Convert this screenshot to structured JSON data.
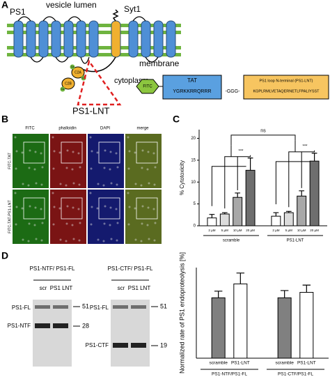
{
  "panel_labels": [
    "A",
    "B",
    "C",
    "D"
  ],
  "diagram": {
    "ps1": "PS1",
    "lumen": "vesicle lumen",
    "syt1": "Syt1",
    "membrane": "membrane",
    "cytoplasm": "cytoplasm",
    "lnt": "PS1-LNT",
    "c2a": "C2A",
    "c2b": "C2B",
    "ca": "Ca"
  },
  "construct": {
    "fitc": "FITC",
    "tat": "TAT",
    "tat_seq": "YGRKKRRQRRR",
    "linker": "-GGG-",
    "lnt_title": "PS1 loop N-terminal (PS1-LNT)",
    "lnt_seq": "KGPLRMLVETAQERNETLFPALIYSST"
  },
  "microscopy": {
    "columns": [
      "FITC",
      "phalloidin",
      "DAPI",
      "merge"
    ],
    "rows": [
      "FITC-TAT",
      "FITC-TAT-PS1-LNT"
    ]
  },
  "blots": [
    {
      "title": "PS1-NTF/ PS1-FL",
      "lanes": [
        "scr",
        "PS1 LNT"
      ],
      "bands": [
        "PS1-FL",
        "PS1-NTF"
      ],
      "markers": [
        "51",
        "28"
      ]
    },
    {
      "title": "PS1-CTF/ PS1-FL",
      "lanes": [
        "scr",
        "PS1 LNT"
      ],
      "bands": [
        "PS1-FL",
        "PS1-CTF"
      ],
      "markers": [
        "51",
        "19"
      ]
    }
  ],
  "chart_data": [
    {
      "type": "bar",
      "ylabel": "% Cytotoxicity",
      "categories": [
        "2 µM",
        "5 µM",
        "10 µM",
        "20 µM",
        "2 µM",
        "5 µM",
        "10 µM",
        "20 µM"
      ],
      "groups": [
        "scramble",
        "PS1-LNT"
      ],
      "values": [
        1.8,
        2.7,
        6.5,
        12.7,
        2.2,
        3.0,
        6.8,
        14.8
      ],
      "errors": [
        0.8,
        0.3,
        1.0,
        2.8,
        0.8,
        0.3,
        1.2,
        1.8
      ],
      "colors": [
        "#ffffff",
        "#dcdcdc",
        "#a8a8a8",
        "#6e6e6e",
        "#ffffff",
        "#dcdcdc",
        "#a8a8a8",
        "#6e6e6e"
      ],
      "ylim": [
        0,
        22
      ],
      "yticks": [
        0,
        5,
        10,
        15,
        20
      ],
      "annotations": [
        "***",
        "***",
        "ns"
      ]
    },
    {
      "type": "bar",
      "ylabel": "Normalized rate of PS1 endoproteolysis [%]",
      "categories": [
        "scramble",
        "PS1-LNT",
        "scramble",
        "PS1-LNT"
      ],
      "groups": [
        "PS1-NTF/PS1-FL",
        "PS1-CTF/PS1-FL"
      ],
      "values": [
        100,
        123,
        100,
        109
      ],
      "errors": [
        11,
        18,
        12,
        12
      ],
      "colors": [
        "#808080",
        "#ffffff",
        "#808080",
        "#ffffff"
      ],
      "ylim": [
        0,
        150
      ]
    }
  ]
}
